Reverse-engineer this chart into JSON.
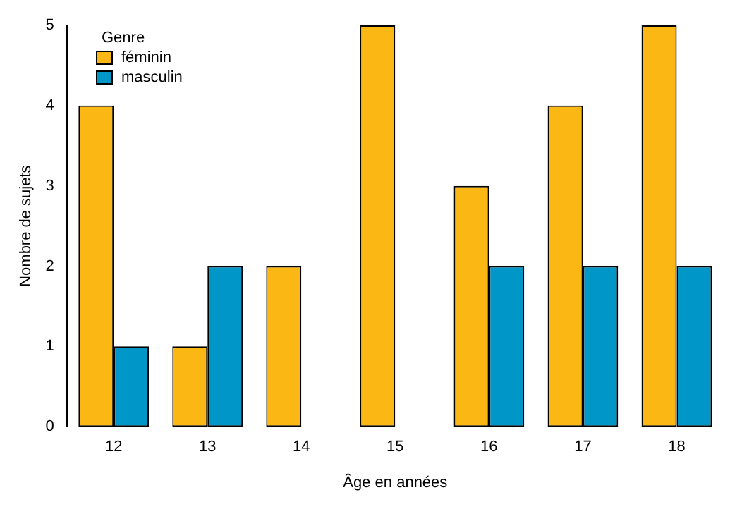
{
  "chart_data": {
    "type": "bar",
    "xlabel": "Âge en années",
    "ylabel": "Nombre de sujets",
    "legend_title": "Genre",
    "categories": [
      "12",
      "13",
      "14",
      "15",
      "16",
      "17",
      "18"
    ],
    "series": [
      {
        "name": "féminin",
        "color": "#fbb714",
        "values": [
          4,
          1,
          2,
          5,
          3,
          4,
          5
        ]
      },
      {
        "name": "masculin",
        "color": "#0096c8",
        "values": [
          1,
          2,
          0,
          0,
          2,
          2,
          2
        ]
      }
    ],
    "ylim": [
      0,
      5
    ],
    "yticks": [
      0,
      1,
      2,
      3,
      4,
      5
    ],
    "grid": false,
    "legend": "top left"
  }
}
